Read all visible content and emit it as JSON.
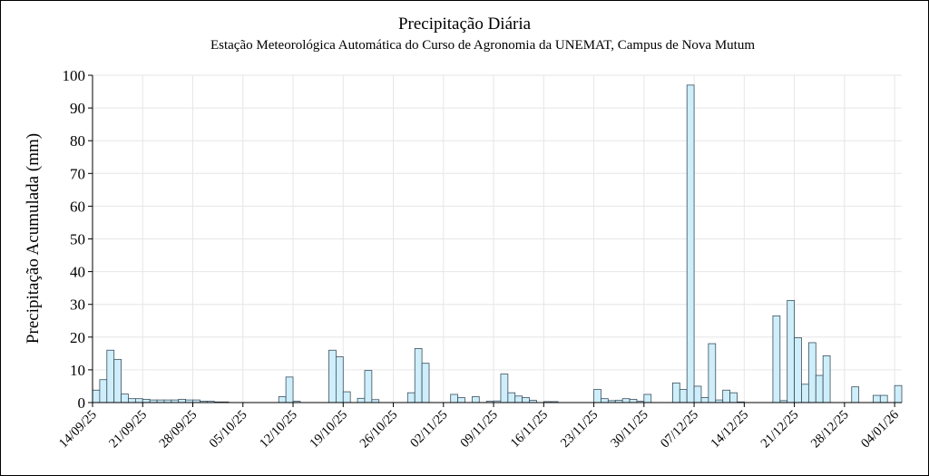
{
  "chart_data": {
    "type": "bar",
    "title": "Precipitação Diária",
    "subtitle": "Estação Meteorológica Automática do Curso de Agronomia da UNEMAT, Campus de Nova Mutum",
    "xlabel": "",
    "ylabel": "Precipitação Acumulada (mm)",
    "ylim": [
      0,
      100
    ],
    "yticks": [
      0,
      10,
      20,
      30,
      40,
      50,
      60,
      70,
      80,
      90,
      100
    ],
    "xlim": [
      "2025-09-14",
      "2026-01-04"
    ],
    "xtick_labels": [
      "14/09/25",
      "21/09/25",
      "28/09/25",
      "05/10/25",
      "12/10/25",
      "19/10/25",
      "26/10/25",
      "02/11/25",
      "09/11/25",
      "16/11/25",
      "23/11/25",
      "30/11/25",
      "07/12/25",
      "14/12/25",
      "21/12/25",
      "28/12/25",
      "04/01/26"
    ],
    "grid": true,
    "bar_color": "#cdeefa",
    "bar_edge_color": "#3d4f5c",
    "series": [
      {
        "dates": [
          "2025-09-14",
          "2025-09-15",
          "2025-09-16",
          "2025-09-17",
          "2025-09-18",
          "2025-09-19",
          "2025-09-20",
          "2025-09-21",
          "2025-09-22",
          "2025-09-23",
          "2025-09-24",
          "2025-09-25",
          "2025-09-26",
          "2025-09-27",
          "2025-09-28",
          "2025-09-29",
          "2025-09-30",
          "2025-10-01",
          "2025-10-02",
          "2025-10-10",
          "2025-10-11",
          "2025-10-12",
          "2025-10-17",
          "2025-10-18",
          "2025-10-19",
          "2025-10-21",
          "2025-10-22",
          "2025-10-23",
          "2025-10-28",
          "2025-10-29",
          "2025-10-30",
          "2025-11-03",
          "2025-11-04",
          "2025-11-06",
          "2025-11-08",
          "2025-11-09",
          "2025-11-10",
          "2025-11-11",
          "2025-11-12",
          "2025-11-13",
          "2025-11-14",
          "2025-11-16",
          "2025-11-17",
          "2025-11-23",
          "2025-11-24",
          "2025-11-25",
          "2025-11-26",
          "2025-11-27",
          "2025-11-28",
          "2025-11-29",
          "2025-11-30",
          "2025-12-04",
          "2025-12-05",
          "2025-12-06",
          "2025-12-07",
          "2025-12-08",
          "2025-12-09",
          "2025-12-10",
          "2025-12-11",
          "2025-12-12",
          "2025-12-13",
          "2025-12-18",
          "2025-12-19",
          "2025-12-20",
          "2025-12-21",
          "2025-12-22",
          "2025-12-23",
          "2025-12-24",
          "2025-12-25",
          "2025-12-29",
          "2026-01-01",
          "2026-01-02",
          "2026-01-04"
        ],
        "values": [
          3.8,
          7.0,
          16.0,
          13.2,
          2.6,
          1.2,
          1.2,
          1.0,
          0.8,
          0.8,
          0.8,
          0.8,
          1.0,
          0.8,
          0.8,
          0.4,
          0.4,
          0.2,
          0.2,
          1.8,
          7.8,
          0.4,
          16.0,
          14.0,
          3.3,
          1.3,
          9.8,
          0.9,
          3.0,
          16.5,
          12.0,
          2.5,
          1.5,
          1.8,
          0.4,
          0.5,
          8.7,
          3.0,
          2.0,
          1.5,
          0.7,
          0.3,
          0.3,
          4.0,
          1.2,
          0.6,
          0.7,
          1.2,
          1.0,
          0.4,
          2.5,
          6.0,
          4.0,
          97.0,
          5.0,
          1.5,
          18.0,
          0.8,
          3.8,
          3.0,
          0.2,
          26.5,
          0.6,
          31.2,
          19.8,
          5.6,
          18.3,
          8.3,
          14.3,
          4.8,
          2.2,
          2.2,
          5.2
        ]
      }
    ]
  }
}
